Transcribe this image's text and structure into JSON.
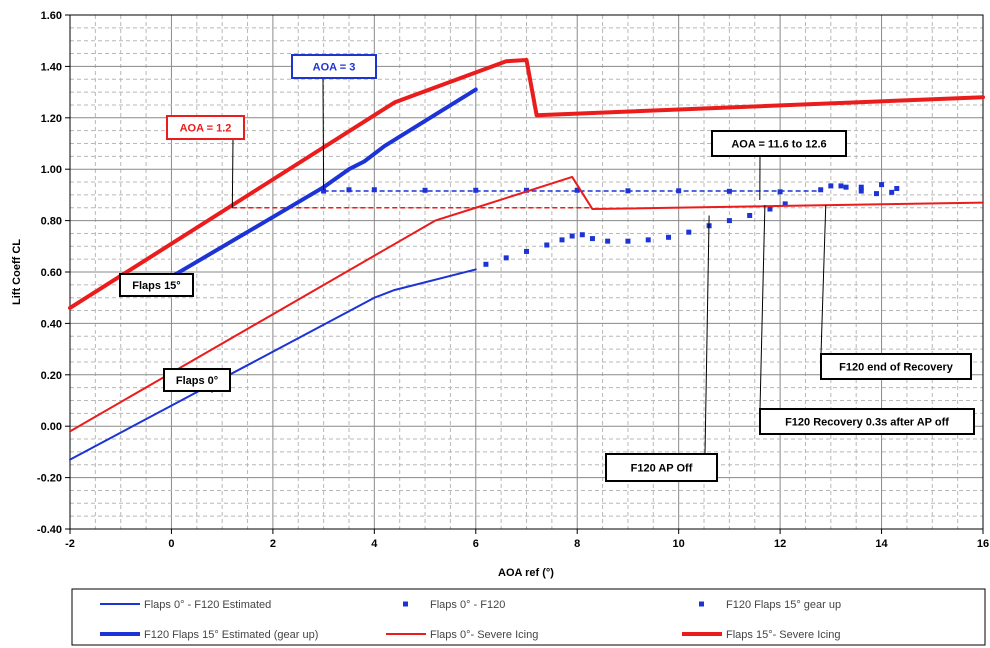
{
  "chart_data": {
    "type": "line",
    "xlabel": "AOA ref (°)",
    "ylabel": "Lift Coeff CL",
    "xlim": [
      -2,
      16
    ],
    "ylim": [
      -0.4,
      1.6
    ],
    "x_ticks": [
      -2,
      0,
      2,
      4,
      6,
      8,
      10,
      12,
      14,
      16
    ],
    "y_ticks": [
      -0.4,
      -0.2,
      0.0,
      0.2,
      0.4,
      0.6,
      0.8,
      1.0,
      1.2,
      1.4,
      1.6
    ],
    "x_tick_labels": [
      "-2",
      "0",
      "2",
      "4",
      "6",
      "8",
      "10",
      "12",
      "14",
      "16"
    ],
    "y_tick_labels": [
      "-0.40",
      "-0.20",
      "0.00",
      "0.20",
      "0.40",
      "0.60",
      "0.80",
      "1.00",
      "1.20",
      "1.40",
      "1.60"
    ],
    "grid": true,
    "legend_position": "bottom",
    "series": [
      {
        "name": "Flaps 0° - F120 Estimated",
        "style": "line",
        "color": "#1c33d6",
        "width": 2,
        "x": [
          -2,
          4,
          4.4,
          6
        ],
        "y": [
          -0.13,
          0.5,
          0.53,
          0.61
        ]
      },
      {
        "name": "Flaps 0° - F120",
        "style": "markers",
        "color": "#1c33d6",
        "x": [
          6.2,
          6.6,
          7.0,
          7.4,
          7.7,
          7.9,
          8.1,
          8.3,
          8.6,
          9.0,
          9.4,
          9.8,
          10.2,
          10.6,
          11.0,
          11.4,
          11.8,
          12.1
        ],
        "y": [
          0.63,
          0.655,
          0.68,
          0.705,
          0.725,
          0.74,
          0.745,
          0.73,
          0.72,
          0.72,
          0.725,
          0.735,
          0.755,
          0.78,
          0.8,
          0.82,
          0.845,
          0.865
        ]
      },
      {
        "name": "F120  Flaps 15° gear up",
        "style": "markers",
        "color": "#1c33d6",
        "x": [
          3.0,
          3.5,
          4.0,
          5.0,
          6.0,
          7.0,
          8.0,
          9.0,
          10.0,
          11.0,
          12.0,
          12.8,
          13.2,
          13.6,
          14.0,
          14.3,
          14.2,
          13.9,
          13.6,
          13.3,
          13.0
        ],
        "y": [
          0.915,
          0.92,
          0.92,
          0.918,
          0.918,
          0.918,
          0.918,
          0.916,
          0.916,
          0.914,
          0.912,
          0.92,
          0.935,
          0.93,
          0.94,
          0.925,
          0.91,
          0.905,
          0.915,
          0.93,
          0.935
        ]
      },
      {
        "name": "F120 Flaps 15° Estimated (gear up)",
        "style": "line",
        "color": "#1c33d6",
        "width": 4,
        "x": [
          -0.1,
          3.0,
          3.5,
          3.8,
          4.2,
          6.0
        ],
        "y": [
          0.57,
          0.93,
          1.0,
          1.03,
          1.09,
          1.31
        ]
      },
      {
        "name": "Flaps 0°- Severe Icing",
        "style": "line",
        "color": "#ea1c1c",
        "width": 2,
        "x": [
          -2,
          5.2,
          6.0,
          7.9,
          8.3,
          16
        ],
        "y": [
          -0.02,
          0.8,
          0.85,
          0.97,
          0.845,
          0.87
        ]
      },
      {
        "name": "Flaps 15°- Severe Icing",
        "style": "line",
        "color": "#ea1c1c",
        "width": 4,
        "x": [
          -2,
          4.4,
          6.6,
          7.0,
          7.2,
          16
        ],
        "y": [
          0.46,
          1.26,
          1.42,
          1.425,
          1.21,
          1.28
        ]
      }
    ],
    "reference_lines": [
      {
        "color": "#ea1c1c",
        "dash": true,
        "x": [
          1.2,
          8.3
        ],
        "y": [
          0.85,
          0.85
        ]
      },
      {
        "color": "#1c33d6",
        "dash": true,
        "x": [
          3.0,
          12.8
        ],
        "y": [
          0.915,
          0.915
        ]
      }
    ],
    "annotations": [
      {
        "text": "AOA  = 3",
        "color": "#1c33d6",
        "border": "#1c33d6",
        "point": [
          3.0,
          0.92
        ]
      },
      {
        "text": "AOA  = 1.2",
        "color": "#ea1c1c",
        "border": "#ea1c1c",
        "point": [
          1.2,
          0.85
        ]
      },
      {
        "text": "AOA  = 11.6 to 12.6",
        "color": "#000000",
        "border": "#000000",
        "point": [
          11.6,
          0.88
        ]
      },
      {
        "text": "Flaps 15°",
        "color": "#000000",
        "border": "#000000",
        "point": [
          -1.0,
          0.58
        ]
      },
      {
        "text": "Flaps 0°",
        "color": "#000000",
        "border": "#000000",
        "point": [
          0.8,
          0.13
        ]
      },
      {
        "text": "F120  end of Recovery",
        "color": "#000000",
        "border": "#000000",
        "point": [
          12.9,
          0.86
        ]
      },
      {
        "text": "F120 Recovery 0.3s after AP off",
        "color": "#000000",
        "border": "#000000",
        "point": [
          11.7,
          0.86
        ]
      },
      {
        "text": "F120 AP Off",
        "color": "#000000",
        "border": "#000000",
        "point": [
          10.6,
          0.82
        ]
      }
    ]
  }
}
